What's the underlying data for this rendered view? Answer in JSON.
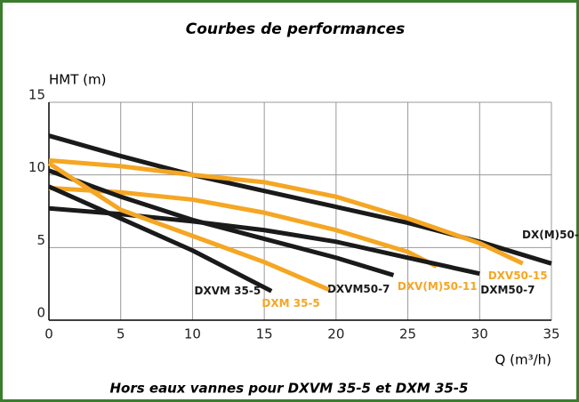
{
  "chart_data": {
    "type": "line",
    "title": "Courbes de performances",
    "y_label": "HMT (m)",
    "x_label": "Q (m³/h)",
    "footnote": "Hors eaux vannes pour DXVM 35-5 et DXM 35-5",
    "xlim": [
      0,
      35
    ],
    "xticks": [
      0,
      5,
      10,
      15,
      20,
      25,
      30,
      35
    ],
    "ylim": [
      0,
      15
    ],
    "yticks": [
      0,
      5,
      10,
      15
    ],
    "grid": true,
    "series": [
      {
        "name": "DX(M)50-11",
        "color": "#1a1a1a",
        "x": [
          0,
          5,
          10,
          15,
          20,
          25,
          30,
          35
        ],
        "values": [
          12.7,
          11.3,
          10.0,
          8.9,
          7.8,
          6.7,
          5.4,
          3.9
        ]
      },
      {
        "name": "DXV50-15",
        "color": "#f5a623",
        "x": [
          0,
          5,
          10,
          15,
          20,
          25,
          30,
          33
        ],
        "values": [
          11.0,
          10.6,
          10.0,
          9.5,
          8.5,
          7.0,
          5.3,
          3.9
        ]
      },
      {
        "name": "DXV(M)50-11",
        "color": "#f5a623",
        "x": [
          0,
          5,
          10,
          15,
          20,
          25,
          27
        ],
        "values": [
          9.1,
          8.8,
          8.3,
          7.4,
          6.2,
          4.7,
          3.7
        ]
      },
      {
        "name": "DXM50-7",
        "color": "#1a1a1a",
        "x": [
          0,
          5,
          10,
          15,
          20,
          25,
          30
        ],
        "values": [
          7.7,
          7.3,
          6.8,
          6.2,
          5.4,
          4.3,
          3.2
        ]
      },
      {
        "name": "DXVM50-7",
        "color": "#1a1a1a",
        "x": [
          0,
          5,
          10,
          15,
          20,
          24
        ],
        "values": [
          10.3,
          8.5,
          6.9,
          5.6,
          4.3,
          3.1
        ]
      },
      {
        "name": "DXM 35-5",
        "color": "#f5a623",
        "x": [
          0,
          5,
          10,
          15,
          19.5
        ],
        "values": [
          10.8,
          7.6,
          5.8,
          4.0,
          2.1
        ]
      },
      {
        "name": "DXVM 35-5",
        "color": "#1a1a1a",
        "x": [
          0,
          5,
          10,
          15.5
        ],
        "values": [
          9.2,
          7.0,
          4.8,
          2.0
        ]
      }
    ]
  }
}
